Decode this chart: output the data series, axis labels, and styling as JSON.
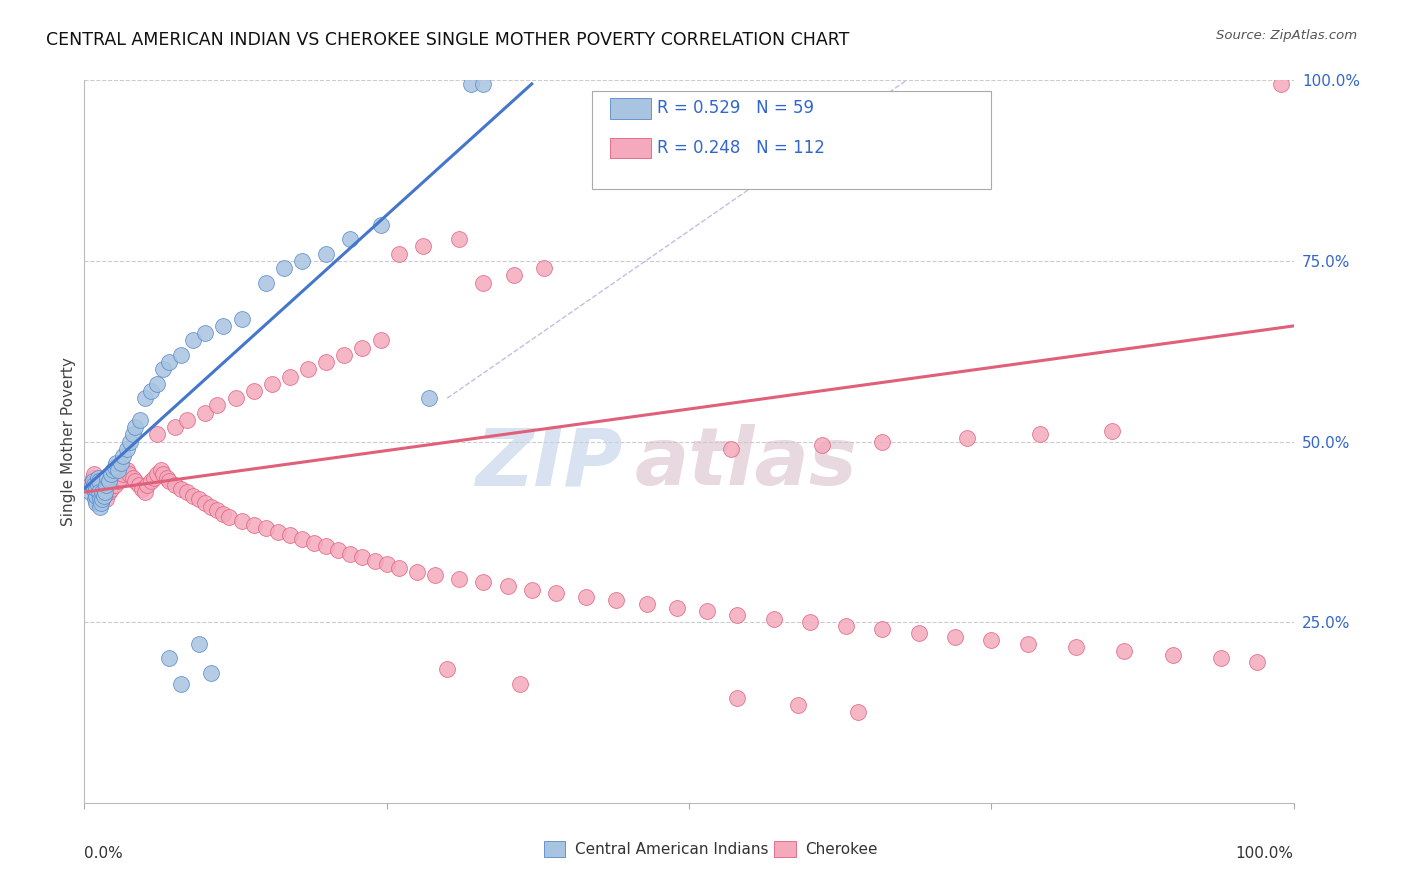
{
  "title": "CENTRAL AMERICAN INDIAN VS CHEROKEE SINGLE MOTHER POVERTY CORRELATION CHART",
  "source": "Source: ZipAtlas.com",
  "ylabel": "Single Mother Poverty",
  "legend_label1": "Central American Indians",
  "legend_label2": "Cherokee",
  "r1": 0.529,
  "n1": 59,
  "r2": 0.248,
  "n2": 112,
  "color_blue_fill": "#A8C4E0",
  "color_blue_edge": "#5588CC",
  "color_pink_fill": "#F4AABC",
  "color_pink_edge": "#E06080",
  "color_blue_line": "#4477CC",
  "color_pink_line": "#E0607A",
  "color_text_blue": "#3366CC",
  "watermark_zip_color": "#C0D0E8",
  "watermark_atlas_color": "#D8C0CA",
  "grid_color": "#CCCCCC",
  "blue_x": [
    0.005,
    0.006,
    0.007,
    0.008,
    0.008,
    0.009,
    0.009,
    0.01,
    0.01,
    0.01,
    0.011,
    0.011,
    0.012,
    0.012,
    0.013,
    0.013,
    0.014,
    0.015,
    0.015,
    0.016,
    0.017,
    0.018,
    0.019,
    0.02,
    0.022,
    0.024,
    0.025,
    0.026,
    0.028,
    0.03,
    0.032,
    0.035,
    0.038,
    0.04,
    0.042,
    0.046,
    0.05,
    0.055,
    0.06,
    0.065,
    0.07,
    0.08,
    0.09,
    0.1,
    0.115,
    0.13,
    0.15,
    0.165,
    0.18,
    0.2,
    0.22,
    0.245,
    0.07,
    0.08,
    0.095,
    0.105,
    0.32,
    0.33,
    0.285
  ],
  "blue_y": [
    0.43,
    0.44,
    0.445,
    0.44,
    0.435,
    0.43,
    0.42,
    0.415,
    0.425,
    0.435,
    0.44,
    0.45,
    0.445,
    0.43,
    0.42,
    0.41,
    0.415,
    0.42,
    0.43,
    0.425,
    0.43,
    0.44,
    0.45,
    0.445,
    0.455,
    0.46,
    0.465,
    0.47,
    0.46,
    0.47,
    0.48,
    0.49,
    0.5,
    0.51,
    0.52,
    0.53,
    0.56,
    0.57,
    0.58,
    0.6,
    0.61,
    0.62,
    0.64,
    0.65,
    0.66,
    0.67,
    0.72,
    0.74,
    0.75,
    0.76,
    0.78,
    0.8,
    0.2,
    0.165,
    0.22,
    0.18,
    0.995,
    0.995,
    0.56
  ],
  "pink_x": [
    0.005,
    0.007,
    0.008,
    0.01,
    0.012,
    0.013,
    0.015,
    0.016,
    0.018,
    0.02,
    0.022,
    0.025,
    0.028,
    0.03,
    0.032,
    0.035,
    0.037,
    0.04,
    0.042,
    0.045,
    0.048,
    0.05,
    0.052,
    0.055,
    0.058,
    0.06,
    0.063,
    0.065,
    0.068,
    0.07,
    0.075,
    0.08,
    0.085,
    0.09,
    0.095,
    0.1,
    0.105,
    0.11,
    0.115,
    0.12,
    0.13,
    0.14,
    0.15,
    0.16,
    0.17,
    0.18,
    0.19,
    0.2,
    0.21,
    0.22,
    0.23,
    0.24,
    0.25,
    0.26,
    0.275,
    0.29,
    0.31,
    0.33,
    0.35,
    0.37,
    0.39,
    0.415,
    0.44,
    0.465,
    0.49,
    0.515,
    0.54,
    0.57,
    0.6,
    0.63,
    0.66,
    0.69,
    0.72,
    0.75,
    0.78,
    0.82,
    0.86,
    0.9,
    0.94,
    0.97,
    0.26,
    0.28,
    0.31,
    0.33,
    0.355,
    0.38,
    0.06,
    0.075,
    0.085,
    0.1,
    0.11,
    0.125,
    0.14,
    0.155,
    0.17,
    0.185,
    0.2,
    0.215,
    0.23,
    0.245,
    0.535,
    0.61,
    0.66,
    0.73,
    0.79,
    0.85,
    0.3,
    0.36,
    0.54,
    0.59,
    0.64,
    0.99
  ],
  "pink_y": [
    0.44,
    0.45,
    0.455,
    0.445,
    0.44,
    0.435,
    0.43,
    0.425,
    0.42,
    0.43,
    0.435,
    0.44,
    0.445,
    0.45,
    0.455,
    0.46,
    0.455,
    0.45,
    0.445,
    0.44,
    0.435,
    0.43,
    0.44,
    0.445,
    0.45,
    0.455,
    0.46,
    0.455,
    0.45,
    0.445,
    0.44,
    0.435,
    0.43,
    0.425,
    0.42,
    0.415,
    0.41,
    0.405,
    0.4,
    0.395,
    0.39,
    0.385,
    0.38,
    0.375,
    0.37,
    0.365,
    0.36,
    0.355,
    0.35,
    0.345,
    0.34,
    0.335,
    0.33,
    0.325,
    0.32,
    0.315,
    0.31,
    0.305,
    0.3,
    0.295,
    0.29,
    0.285,
    0.28,
    0.275,
    0.27,
    0.265,
    0.26,
    0.255,
    0.25,
    0.245,
    0.24,
    0.235,
    0.23,
    0.225,
    0.22,
    0.215,
    0.21,
    0.205,
    0.2,
    0.195,
    0.76,
    0.77,
    0.78,
    0.72,
    0.73,
    0.74,
    0.51,
    0.52,
    0.53,
    0.54,
    0.55,
    0.56,
    0.57,
    0.58,
    0.59,
    0.6,
    0.61,
    0.62,
    0.63,
    0.64,
    0.49,
    0.495,
    0.5,
    0.505,
    0.51,
    0.515,
    0.185,
    0.165,
    0.145,
    0.135,
    0.125,
    0.995
  ],
  "blue_line": [
    [
      0.0,
      0.435
    ],
    [
      0.37,
      0.995
    ]
  ],
  "pink_line": [
    [
      0.0,
      0.43
    ],
    [
      1.0,
      0.66
    ]
  ],
  "dash_line": [
    [
      0.3,
      0.56
    ],
    [
      0.68,
      1.0
    ]
  ]
}
